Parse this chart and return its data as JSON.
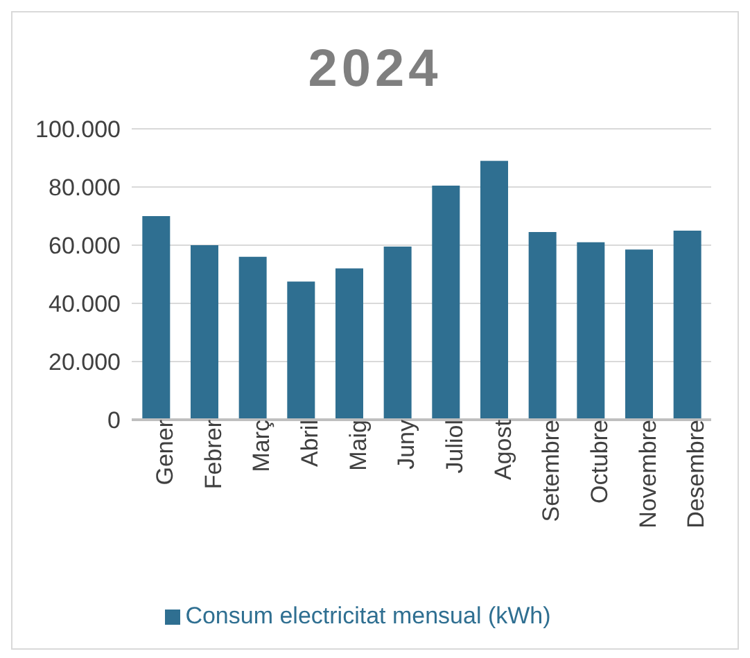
{
  "chart_data": {
    "type": "bar",
    "title": "2024",
    "categories": [
      "Gener",
      "Febrer",
      "Març",
      "Abril",
      "Maig",
      "Juny",
      "Juliol",
      "Agost",
      "Setembre",
      "Octubre",
      "Novembre",
      "Desembre"
    ],
    "series": [
      {
        "name": "Consum electricitat mensual (kWh)",
        "color": "#2f6f91",
        "values": [
          70000,
          60000,
          56000,
          47500,
          52000,
          59500,
          80500,
          89000,
          64500,
          61000,
          58500,
          65000
        ]
      }
    ],
    "ylim": [
      0,
      100000
    ],
    "yticks": [
      {
        "value": 0,
        "label": "0"
      },
      {
        "value": 20000,
        "label": "20.000"
      },
      {
        "value": 40000,
        "label": "40.000"
      },
      {
        "value": 60000,
        "label": "60.000"
      },
      {
        "value": 80000,
        "label": "80.000"
      },
      {
        "value": 100000,
        "label": "100.000"
      }
    ],
    "grid": "y",
    "legend": "bottom"
  }
}
